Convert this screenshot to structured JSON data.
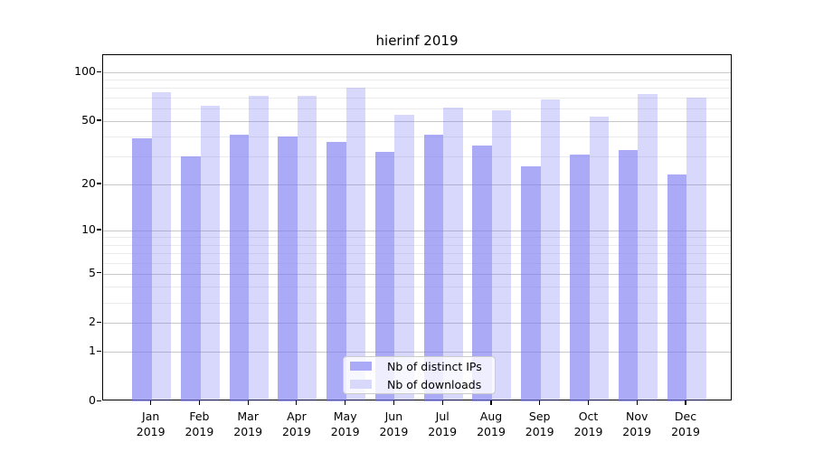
{
  "chart_data": {
    "type": "bar",
    "title": "hierinf 2019",
    "x_tick_labels": [
      [
        "Jan",
        "2019"
      ],
      [
        "Feb",
        "2019"
      ],
      [
        "Mar",
        "2019"
      ],
      [
        "Apr",
        "2019"
      ],
      [
        "May",
        "2019"
      ],
      [
        "Jun",
        "2019"
      ],
      [
        "Jul",
        "2019"
      ],
      [
        "Aug",
        "2019"
      ],
      [
        "Sep",
        "2019"
      ],
      [
        "Oct",
        "2019"
      ],
      [
        "Nov",
        "2019"
      ],
      [
        "Dec",
        "2019"
      ]
    ],
    "series": [
      {
        "name": "Nb of distinct IPs",
        "values": [
          39,
          30,
          41,
          40,
          37,
          32,
          41,
          35,
          26,
          31,
          33,
          23
        ],
        "fill": "rgba(120,120,243,0.63)",
        "solid_hex": "#aaaaf7"
      },
      {
        "name": "Nb of downloads",
        "values": [
          75,
          62,
          72,
          72,
          81,
          55,
          61,
          58,
          68,
          53,
          74,
          70
        ],
        "fill": "rgba(120,120,243,0.29)",
        "solid_hex": "#d8d8fa"
      }
    ],
    "yscale": "log1p",
    "ylim": [
      0,
      127
    ],
    "y_major_ticks": [
      100,
      50,
      20,
      10,
      5,
      2,
      1,
      0
    ],
    "y_minor_gridlines": [
      90,
      80,
      70,
      60,
      40,
      30,
      9,
      8,
      7,
      6,
      4,
      3
    ],
    "grid": true,
    "legend": {
      "position": "lower center",
      "entries": [
        "Nb of distinct IPs",
        "Nb of downloads"
      ]
    }
  },
  "colors": {
    "major_grid": "#c8c8c8",
    "minor_grid": "#ebebeb",
    "axis": "#000000",
    "text": "#000000",
    "background": "#ffffff"
  }
}
